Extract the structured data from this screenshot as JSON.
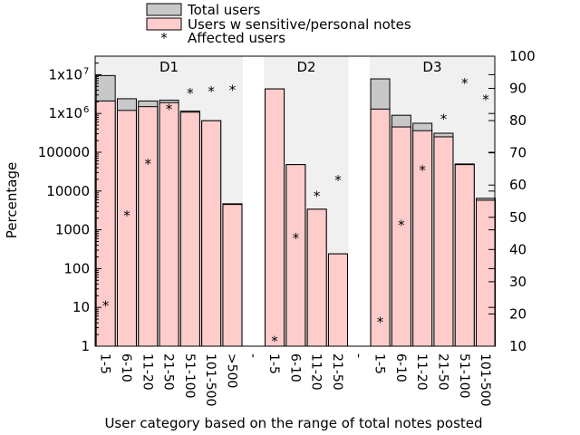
{
  "chart_data": {
    "type": "bar",
    "title": "",
    "xlabel": "User category based on the range of total notes posted",
    "ylabel": "Percentage",
    "left_axis": {
      "scale": "log",
      "range": [
        1,
        30000000
      ],
      "ticks": [
        1,
        10,
        100,
        1000,
        10000,
        100000,
        1000000,
        10000000
      ],
      "tick_labels": [
        "1",
        "10",
        "100",
        "1000",
        "10000",
        "100000",
        "1x10",
        "1x10"
      ],
      "tick_sup": [
        "",
        "",
        "",
        "",
        "",
        "",
        "6",
        "7"
      ]
    },
    "right_axis": {
      "scale": "linear",
      "range": [
        10,
        100
      ],
      "ticks": [
        10,
        20,
        30,
        40,
        50,
        60,
        70,
        80,
        90,
        100
      ],
      "tick_labels": [
        "10",
        "20",
        "30",
        "40",
        "50",
        "60",
        "70",
        "80",
        "90",
        "100"
      ]
    },
    "legend": {
      "placement": "top",
      "entries": [
        "Total users",
        "Users w sensitive/personal notes",
        "Affected users"
      ]
    },
    "colors": {
      "total": "#c8c8c8",
      "sensitive": "#ffcccc",
      "shade": "#f0f0f0",
      "marker": "#000000"
    },
    "separator_label": "-",
    "groups": [
      {
        "name": "D1",
        "categories": [
          "1-5",
          "6-10",
          "11-20",
          "21-50",
          "51-100",
          "101-500",
          ">500"
        ],
        "total_users": [
          9500000,
          2400000,
          2100000,
          2200000,
          1150000,
          650000,
          4700
        ],
        "sensitive_users": [
          2100000,
          1200000,
          1500000,
          1900000,
          1080000,
          650000,
          4500
        ],
        "affected_pct": [
          22.5,
          50.5,
          66.5,
          83.5,
          88.5,
          89,
          89.5
        ]
      },
      {
        "name": "D2",
        "categories": [
          "1-5",
          "6-10",
          "11-20",
          "21-50"
        ],
        "total_users": [
          4300000,
          48000,
          3400,
          240
        ],
        "sensitive_users": [
          4300000,
          48000,
          3400,
          240
        ],
        "affected_pct": [
          11.5,
          43.5,
          56.5,
          61.5
        ]
      },
      {
        "name": "D3",
        "categories": [
          "1-5",
          "6-10",
          "11-20",
          "21-50",
          "51-100",
          "101-500"
        ],
        "total_users": [
          7800000,
          900000,
          560000,
          310000,
          50000,
          6500
        ],
        "sensitive_users": [
          1300000,
          450000,
          360000,
          250000,
          48000,
          5800
        ],
        "affected_pct": [
          17.5,
          47.5,
          64.5,
          80.5,
          91.5,
          86.5
        ]
      }
    ]
  }
}
